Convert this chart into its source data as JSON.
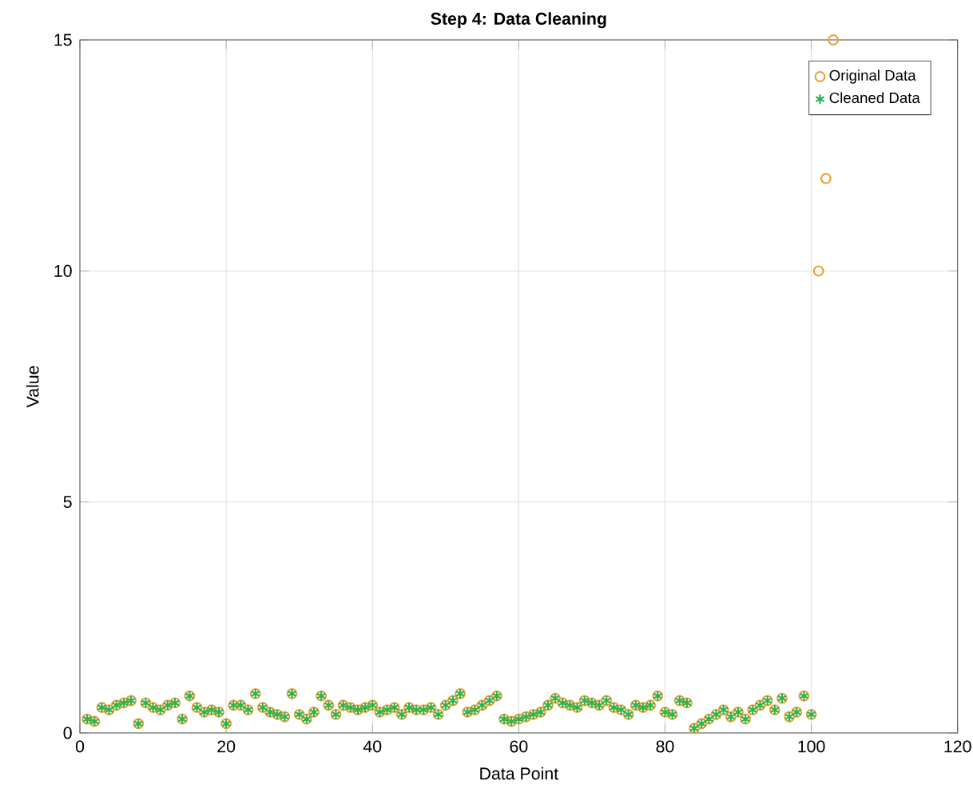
{
  "chart_data": {
    "type": "scatter",
    "title": "Step 4: Data Cleaning",
    "xlabel": "Data Point",
    "ylabel": "Value",
    "xlim": [
      0,
      120
    ],
    "ylim": [
      0,
      15
    ],
    "xticks": [
      0,
      20,
      40,
      60,
      80,
      100,
      120
    ],
    "yticks": [
      0,
      5,
      10,
      15
    ],
    "grid": true,
    "legend": "top right",
    "series": [
      {
        "name": "Original Data",
        "color": "#e8a33c",
        "marker": "circle",
        "x": [
          1,
          2,
          3,
          4,
          5,
          6,
          7,
          8,
          9,
          10,
          11,
          12,
          13,
          14,
          15,
          16,
          17,
          18,
          19,
          20,
          21,
          22,
          23,
          24,
          25,
          26,
          27,
          28,
          29,
          30,
          31,
          32,
          33,
          34,
          35,
          36,
          37,
          38,
          39,
          40,
          41,
          42,
          43,
          44,
          45,
          46,
          47,
          48,
          49,
          50,
          51,
          52,
          53,
          54,
          55,
          56,
          57,
          58,
          59,
          60,
          61,
          62,
          63,
          64,
          65,
          66,
          67,
          68,
          69,
          70,
          71,
          72,
          73,
          74,
          75,
          76,
          77,
          78,
          79,
          80,
          81,
          82,
          83,
          84,
          85,
          86,
          87,
          88,
          89,
          90,
          91,
          92,
          93,
          94,
          95,
          96,
          97,
          98,
          99,
          100,
          101,
          102,
          103
        ],
        "values": [
          0.3,
          0.25,
          0.55,
          0.5,
          0.6,
          0.65,
          0.7,
          0.2,
          0.65,
          0.55,
          0.5,
          0.6,
          0.65,
          0.3,
          0.8,
          0.55,
          0.45,
          0.5,
          0.45,
          0.2,
          0.6,
          0.6,
          0.5,
          0.85,
          0.55,
          0.45,
          0.4,
          0.35,
          0.85,
          0.4,
          0.3,
          0.45,
          0.8,
          0.6,
          0.4,
          0.6,
          0.55,
          0.5,
          0.55,
          0.6,
          0.45,
          0.5,
          0.55,
          0.4,
          0.55,
          0.5,
          0.5,
          0.55,
          0.4,
          0.6,
          0.7,
          0.85,
          0.45,
          0.5,
          0.6,
          0.7,
          0.8,
          0.3,
          0.25,
          0.3,
          0.35,
          0.4,
          0.45,
          0.6,
          0.75,
          0.65,
          0.6,
          0.55,
          0.7,
          0.65,
          0.6,
          0.7,
          0.55,
          0.5,
          0.4,
          0.6,
          0.55,
          0.6,
          0.8,
          0.45,
          0.4,
          0.7,
          0.65,
          0.1,
          0.2,
          0.3,
          0.4,
          0.5,
          0.35,
          0.45,
          0.3,
          0.5,
          0.6,
          0.7,
          0.5,
          0.75,
          0.35,
          0.45,
          0.8,
          0.4,
          10,
          12,
          15
        ]
      },
      {
        "name": "Cleaned Data",
        "color": "#2bb24c",
        "marker": "cross",
        "x": [
          1,
          2,
          3,
          4,
          5,
          6,
          7,
          8,
          9,
          10,
          11,
          12,
          13,
          14,
          15,
          16,
          17,
          18,
          19,
          20,
          21,
          22,
          23,
          24,
          25,
          26,
          27,
          28,
          29,
          30,
          31,
          32,
          33,
          34,
          35,
          36,
          37,
          38,
          39,
          40,
          41,
          42,
          43,
          44,
          45,
          46,
          47,
          48,
          49,
          50,
          51,
          52,
          53,
          54,
          55,
          56,
          57,
          58,
          59,
          60,
          61,
          62,
          63,
          64,
          65,
          66,
          67,
          68,
          69,
          70,
          71,
          72,
          73,
          74,
          75,
          76,
          77,
          78,
          79,
          80,
          81,
          82,
          83,
          84,
          85,
          86,
          87,
          88,
          89,
          90,
          91,
          92,
          93,
          94,
          95,
          96,
          97,
          98,
          99,
          100
        ],
        "values": [
          0.3,
          0.25,
          0.55,
          0.5,
          0.6,
          0.65,
          0.7,
          0.2,
          0.65,
          0.55,
          0.5,
          0.6,
          0.65,
          0.3,
          0.8,
          0.55,
          0.45,
          0.5,
          0.45,
          0.2,
          0.6,
          0.6,
          0.5,
          0.85,
          0.55,
          0.45,
          0.4,
          0.35,
          0.85,
          0.4,
          0.3,
          0.45,
          0.8,
          0.6,
          0.4,
          0.6,
          0.55,
          0.5,
          0.55,
          0.6,
          0.45,
          0.5,
          0.55,
          0.4,
          0.55,
          0.5,
          0.5,
          0.55,
          0.4,
          0.6,
          0.7,
          0.85,
          0.45,
          0.5,
          0.6,
          0.7,
          0.8,
          0.3,
          0.25,
          0.3,
          0.35,
          0.4,
          0.45,
          0.6,
          0.75,
          0.65,
          0.6,
          0.55,
          0.7,
          0.65,
          0.6,
          0.7,
          0.55,
          0.5,
          0.4,
          0.6,
          0.55,
          0.6,
          0.8,
          0.45,
          0.4,
          0.7,
          0.65,
          0.1,
          0.2,
          0.3,
          0.4,
          0.5,
          0.35,
          0.45,
          0.3,
          0.5,
          0.6,
          0.7,
          0.5,
          0.75,
          0.35,
          0.45,
          0.8,
          0.4
        ]
      }
    ]
  }
}
